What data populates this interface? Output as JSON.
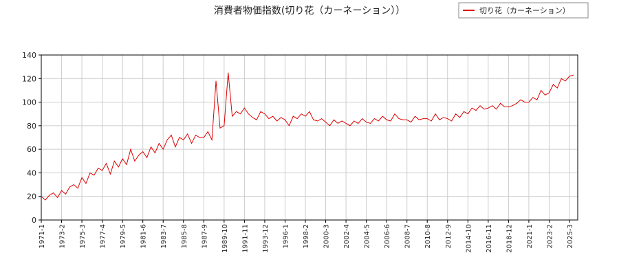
{
  "chart_data": {
    "type": "line",
    "title": "消費者物価指数(切り花（カーネーション））",
    "categories": [
      "1971-1",
      null,
      null,
      null,
      null,
      "1973-2",
      null,
      null,
      null,
      null,
      "1975-3",
      null,
      null,
      null,
      null,
      "1977-4",
      null,
      null,
      null,
      null,
      "1979-5",
      null,
      null,
      null,
      null,
      "1981-6",
      null,
      null,
      null,
      null,
      "1983-7",
      null,
      null,
      null,
      null,
      "1985-8",
      null,
      null,
      null,
      null,
      "1987-9",
      null,
      null,
      null,
      null,
      "1989-10",
      null,
      null,
      null,
      null,
      "1991-11",
      null,
      null,
      null,
      null,
      "1993-12",
      null,
      null,
      null,
      null,
      "1996-1",
      null,
      null,
      null,
      null,
      "1998-2",
      null,
      null,
      null,
      null,
      "2000-3",
      null,
      null,
      null,
      null,
      "2002-4",
      null,
      null,
      null,
      null,
      "2004-5",
      null,
      null,
      null,
      null,
      "2006-6",
      null,
      null,
      null,
      null,
      "2008-7",
      null,
      null,
      null,
      null,
      "2010-8",
      null,
      null,
      null,
      null,
      "2012-9",
      null,
      null,
      null,
      null,
      "2014-10",
      null,
      null,
      null,
      null,
      "2016-11",
      null,
      null,
      null,
      null,
      "2018-12",
      null,
      null,
      null,
      null,
      "2021-1",
      null,
      null,
      null,
      null,
      "2023-2",
      null,
      null,
      null,
      null,
      "2025-3",
      null
    ],
    "series": [
      {
        "name": "切り花（カーネーション）",
        "color": "#dd0000",
        "values": [
          20,
          17,
          21,
          23,
          19,
          25,
          22,
          28,
          30,
          27,
          36,
          31,
          40,
          38,
          44,
          42,
          48,
          39,
          50,
          45,
          52,
          47,
          60,
          50,
          55,
          58,
          53,
          62,
          57,
          65,
          60,
          68,
          72,
          62,
          70,
          68,
          73,
          65,
          72,
          70,
          70,
          75,
          68,
          118,
          78,
          80,
          125,
          88,
          92,
          90,
          95,
          90,
          87,
          85,
          92,
          90,
          86,
          88,
          84,
          87,
          85,
          80,
          88,
          86,
          90,
          88,
          92,
          85,
          84,
          86,
          83,
          80,
          85,
          82,
          84,
          82,
          80,
          84,
          82,
          86,
          83,
          82,
          86,
          84,
          88,
          85,
          84,
          90,
          86,
          85,
          85,
          83,
          88,
          85,
          86,
          86,
          84,
          90,
          85,
          87,
          86,
          84,
          90,
          87,
          92,
          90,
          95,
          93,
          97,
          94,
          95,
          97,
          94,
          99,
          96,
          96,
          97,
          99,
          102,
          100,
          100,
          104,
          102,
          110,
          106,
          108,
          115,
          112,
          120,
          118,
          122,
          123
        ]
      }
    ],
    "ylim": [
      0,
      140
    ],
    "yticks": [
      0,
      20,
      40,
      60,
      80,
      100,
      120,
      140
    ],
    "grid": true,
    "legend": "top-right"
  }
}
